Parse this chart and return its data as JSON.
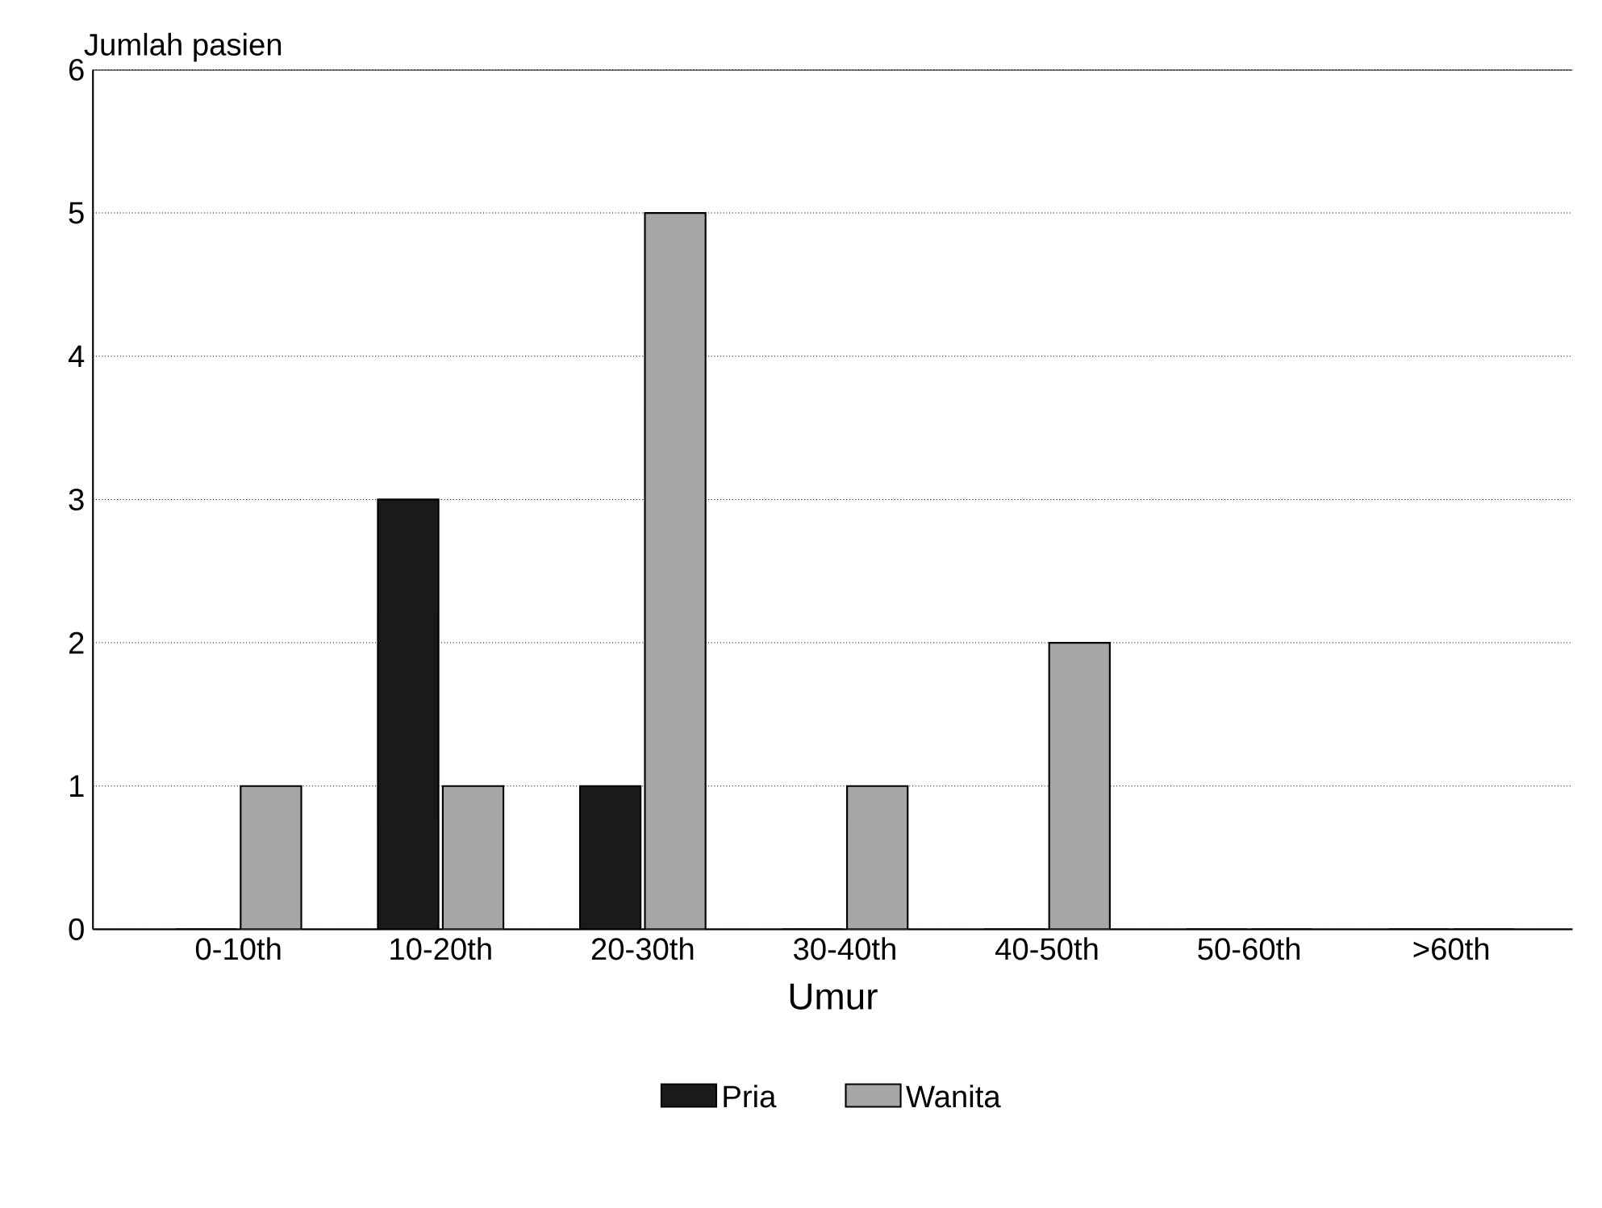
{
  "chart_data": {
    "type": "bar",
    "xlabel": "Umur",
    "ylabel": "Jumlah pasien",
    "categories": [
      "0-10th",
      "10-20th",
      "20-30th",
      "30-40th",
      "40-50th",
      "50-60th",
      ">60th"
    ],
    "series": [
      {
        "name": "Pria",
        "color": "#1a1a1a",
        "values": [
          0,
          3,
          1,
          0,
          0,
          0,
          0
        ]
      },
      {
        "name": "Wanita",
        "color": "#a6a6a6",
        "values": [
          1,
          1,
          5,
          1,
          2,
          0,
          0
        ]
      }
    ],
    "ylim": [
      0,
      6
    ],
    "yticks": [
      0,
      1,
      2,
      3,
      4,
      5,
      6
    ],
    "grid": "y",
    "legend": "bottom"
  }
}
